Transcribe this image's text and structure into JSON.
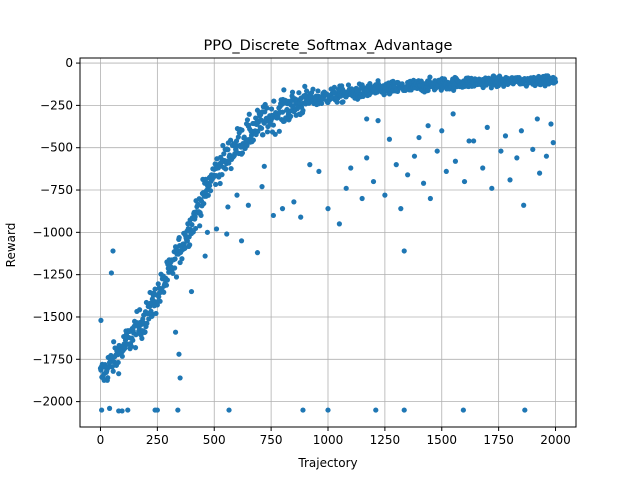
{
  "chart_data": {
    "type": "scatter",
    "title": "PPO_Discrete_Softmax_Advantage",
    "xlabel": "Trajectory",
    "ylabel": "Reward",
    "xlim": [
      -90,
      2090
    ],
    "ylim": [
      -2150,
      30
    ],
    "xticks": [
      0,
      250,
      500,
      750,
      1000,
      1250,
      1500,
      1750,
      2000
    ],
    "yticks": [
      -2000,
      -1750,
      -1500,
      -1250,
      -1000,
      -750,
      -500,
      -250,
      0
    ],
    "xtick_labels": [
      "0",
      "250",
      "500",
      "750",
      "1000",
      "1250",
      "1500",
      "1750",
      "2000"
    ],
    "ytick_labels": [
      "−2000",
      "−1750",
      "−1500",
      "−1250",
      "−1000",
      "−750",
      "−500",
      "−250",
      "0"
    ],
    "grid": true,
    "legend": "none",
    "point_color": "#1f77b4",
    "trend": {
      "x": [
        0,
        100,
        200,
        300,
        400,
        500,
        600,
        700,
        800,
        900,
        1000,
        1200,
        1400,
        1600,
        1800,
        2000
      ],
      "y": [
        -1850,
        -1680,
        -1500,
        -1250,
        -950,
        -650,
        -480,
        -360,
        -280,
        -220,
        -195,
        -160,
        -135,
        -115,
        -105,
        -100
      ]
    },
    "spread_reward": 110,
    "sparse_points": [
      {
        "x": 2,
        "y": -1520
      },
      {
        "x": 48,
        "y": -1240
      },
      {
        "x": 55,
        "y": -1110
      },
      {
        "x": 5,
        "y": -2050
      },
      {
        "x": 40,
        "y": -2040
      },
      {
        "x": 80,
        "y": -2055
      },
      {
        "x": 95,
        "y": -2055
      },
      {
        "x": 120,
        "y": -2050
      },
      {
        "x": 240,
        "y": -2050
      },
      {
        "x": 250,
        "y": -2050
      },
      {
        "x": 340,
        "y": -2050
      },
      {
        "x": 565,
        "y": -2050
      },
      {
        "x": 890,
        "y": -2050
      },
      {
        "x": 1000,
        "y": -2050
      },
      {
        "x": 1210,
        "y": -2050
      },
      {
        "x": 1335,
        "y": -2050
      },
      {
        "x": 1595,
        "y": -2050
      },
      {
        "x": 1865,
        "y": -2050
      },
      {
        "x": 350,
        "y": -1860
      },
      {
        "x": 330,
        "y": -1590
      },
      {
        "x": 345,
        "y": -1720
      },
      {
        "x": 400,
        "y": -1350
      },
      {
        "x": 460,
        "y": -1140
      },
      {
        "x": 470,
        "y": -1000
      },
      {
        "x": 510,
        "y": -980
      },
      {
        "x": 555,
        "y": -1010
      },
      {
        "x": 620,
        "y": -1050
      },
      {
        "x": 690,
        "y": -1120
      },
      {
        "x": 560,
        "y": -850
      },
      {
        "x": 600,
        "y": -780
      },
      {
        "x": 650,
        "y": -840
      },
      {
        "x": 710,
        "y": -730
      },
      {
        "x": 720,
        "y": -610
      },
      {
        "x": 760,
        "y": -900
      },
      {
        "x": 800,
        "y": -860
      },
      {
        "x": 850,
        "y": -820
      },
      {
        "x": 880,
        "y": -910
      },
      {
        "x": 920,
        "y": -600
      },
      {
        "x": 960,
        "y": -640
      },
      {
        "x": 1000,
        "y": -860
      },
      {
        "x": 1050,
        "y": -950
      },
      {
        "x": 1080,
        "y": -740
      },
      {
        "x": 1100,
        "y": -620
      },
      {
        "x": 1150,
        "y": -800
      },
      {
        "x": 1170,
        "y": -560
      },
      {
        "x": 1200,
        "y": -700
      },
      {
        "x": 1250,
        "y": -780
      },
      {
        "x": 1300,
        "y": -600
      },
      {
        "x": 1320,
        "y": -860
      },
      {
        "x": 1335,
        "y": -1110
      },
      {
        "x": 1350,
        "y": -660
      },
      {
        "x": 1380,
        "y": -550
      },
      {
        "x": 1420,
        "y": -710
      },
      {
        "x": 1450,
        "y": -800
      },
      {
        "x": 1480,
        "y": -520
      },
      {
        "x": 1520,
        "y": -640
      },
      {
        "x": 1560,
        "y": -580
      },
      {
        "x": 1600,
        "y": -700
      },
      {
        "x": 1640,
        "y": -460
      },
      {
        "x": 1680,
        "y": -620
      },
      {
        "x": 1720,
        "y": -740
      },
      {
        "x": 1760,
        "y": -520
      },
      {
        "x": 1800,
        "y": -690
      },
      {
        "x": 1830,
        "y": -560
      },
      {
        "x": 1860,
        "y": -840
      },
      {
        "x": 1900,
        "y": -510
      },
      {
        "x": 1930,
        "y": -650
      },
      {
        "x": 1960,
        "y": -550
      },
      {
        "x": 1990,
        "y": -470
      },
      {
        "x": 1170,
        "y": -330
      },
      {
        "x": 1220,
        "y": -340
      },
      {
        "x": 1270,
        "y": -450
      },
      {
        "x": 1400,
        "y": -440
      },
      {
        "x": 1440,
        "y": -370
      },
      {
        "x": 1500,
        "y": -400
      },
      {
        "x": 1550,
        "y": -300
      },
      {
        "x": 1620,
        "y": -460
      },
      {
        "x": 1700,
        "y": -380
      },
      {
        "x": 1780,
        "y": -430
      },
      {
        "x": 1850,
        "y": -400
      },
      {
        "x": 1920,
        "y": -330
      },
      {
        "x": 1980,
        "y": -360
      }
    ]
  }
}
